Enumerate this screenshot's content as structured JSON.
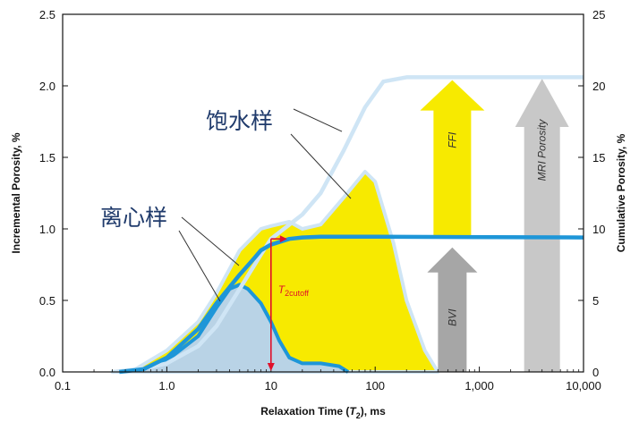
{
  "chart_data": {
    "type": "area",
    "xlabel_main": "Relaxation Time (",
    "xlabel_var": "T",
    "xlabel_sub": "2",
    "xlabel_tail": "), ms",
    "ylabel_left": "Incremental Porosity, %",
    "ylabel_right": "Cumulative Porosity, %",
    "x_scale": "log",
    "xlim": [
      0.1,
      10000
    ],
    "ylim_left": [
      0,
      2.5
    ],
    "ylim_right": [
      0,
      25
    ],
    "x_ticks": [
      "0.1",
      "1.0",
      "10",
      "100",
      "1,000",
      "10,000"
    ],
    "y_ticks_left": [
      "0.0",
      "0.5",
      "1.0",
      "1.5",
      "2.0",
      "2.5"
    ],
    "y_ticks_right": [
      "0",
      "5",
      "10",
      "15",
      "20",
      "25"
    ],
    "labels": {
      "saturated": "饱水样",
      "centrifuged": "离心样",
      "cutoff_main": "T",
      "cutoff_sub": "2cutoff",
      "ffi": "FFI",
      "bvi": "BVI",
      "mri": "MRI Porosity"
    },
    "cutoff_x": 10,
    "series": [
      {
        "role": "saturated-incremental",
        "axis": "left",
        "color": "#f7ea00",
        "points": [
          [
            0.3,
            0
          ],
          [
            0.5,
            0.02
          ],
          [
            1,
            0.15
          ],
          [
            2,
            0.35
          ],
          [
            3,
            0.55
          ],
          [
            5,
            0.85
          ],
          [
            8,
            1.0
          ],
          [
            10,
            1.02
          ],
          [
            15,
            1.05
          ],
          [
            20,
            1.0
          ],
          [
            30,
            1.03
          ],
          [
            50,
            1.22
          ],
          [
            80,
            1.4
          ],
          [
            100,
            1.33
          ],
          [
            150,
            0.9
          ],
          [
            200,
            0.5
          ],
          [
            300,
            0.15
          ],
          [
            400,
            0
          ]
        ]
      },
      {
        "role": "centrifuged-incremental",
        "axis": "left",
        "color": "#1e96d8",
        "points": [
          [
            0.35,
            0
          ],
          [
            0.6,
            0.02
          ],
          [
            1,
            0.08
          ],
          [
            2,
            0.25
          ],
          [
            3,
            0.45
          ],
          [
            4,
            0.58
          ],
          [
            5,
            0.61
          ],
          [
            6,
            0.58
          ],
          [
            8,
            0.48
          ],
          [
            10,
            0.35
          ],
          [
            12,
            0.22
          ],
          [
            15,
            0.1
          ],
          [
            20,
            0.06
          ],
          [
            30,
            0.06
          ],
          [
            45,
            0.04
          ],
          [
            55,
            0
          ]
        ]
      },
      {
        "role": "saturated-cumulative",
        "axis": "right",
        "color": "#cfe5f5",
        "points": [
          [
            0.3,
            0
          ],
          [
            0.5,
            0.1
          ],
          [
            1,
            0.6
          ],
          [
            2,
            1.8
          ],
          [
            3,
            3.2
          ],
          [
            5,
            5.8
          ],
          [
            8,
            8.2
          ],
          [
            10,
            9.3
          ],
          [
            20,
            11
          ],
          [
            30,
            12.5
          ],
          [
            50,
            15.5
          ],
          [
            80,
            18.5
          ],
          [
            120,
            20.3
          ],
          [
            200,
            20.6
          ],
          [
            500,
            20.6
          ],
          [
            10000,
            20.6
          ]
        ]
      },
      {
        "role": "centrifuged-cumulative",
        "axis": "right",
        "color": "#1e96d8",
        "points": [
          [
            0.35,
            0
          ],
          [
            0.6,
            0.2
          ],
          [
            1,
            1
          ],
          [
            2,
            3
          ],
          [
            3,
            4.8
          ],
          [
            5,
            6.8
          ],
          [
            7,
            8
          ],
          [
            8,
            8.5
          ],
          [
            10,
            8.9
          ],
          [
            15,
            9.3
          ],
          [
            20,
            9.4
          ],
          [
            30,
            9.45
          ],
          [
            100,
            9.45
          ],
          [
            10000,
            9.4
          ]
        ]
      }
    ]
  }
}
